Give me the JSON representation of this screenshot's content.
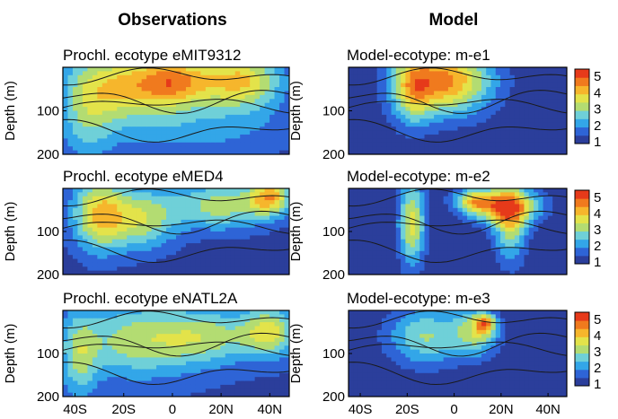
{
  "column_titles": {
    "left": "Observations",
    "right": "Model"
  },
  "colors": {
    "levels": [
      "#2b3e9b",
      "#2e64d6",
      "#33a6e8",
      "#6fd0d8",
      "#b3dc72",
      "#e3e34a",
      "#f6b62c",
      "#f07a1e",
      "#e63a1a"
    ],
    "contour": "#1a1a1a",
    "frame": "#000000"
  },
  "chart_data": [
    {
      "type": "heatmap",
      "id": "obs-emit9312",
      "title": "Prochl. ecotype eMIT9312",
      "ylabel": "Depth (m)",
      "yticks": [
        "100",
        "200"
      ],
      "xticks": [],
      "xlim": [
        -45,
        48
      ],
      "ylim": [
        200,
        0
      ],
      "blobs": [
        {
          "cx": -18,
          "cy": 40,
          "sx": 16,
          "sy": 55,
          "a": 3.4
        },
        {
          "cx": 2,
          "cy": 30,
          "sx": 10,
          "sy": 40,
          "a": 2.8
        },
        {
          "cx": 28,
          "cy": 30,
          "sx": 12,
          "sy": 45,
          "a": 3.6
        },
        {
          "cx": -35,
          "cy": 110,
          "sx": 8,
          "sy": 80,
          "a": 1.6
        },
        {
          "cx": 10,
          "cy": 140,
          "sx": 30,
          "sy": 50,
          "a": 1.2
        }
      ],
      "base": 0.6
    },
    {
      "type": "heatmap",
      "id": "model-me1",
      "title": "Model-ecotype: m-e1",
      "ylabel": "Depth (m)",
      "yticks": [
        "100",
        "200"
      ],
      "xticks": [],
      "xlim": [
        -45,
        48
      ],
      "ylim": [
        200,
        0
      ],
      "colorbar": [
        "5",
        "4",
        "3",
        "2",
        "1"
      ],
      "blobs": [
        {
          "cx": -4,
          "cy": 30,
          "sx": 14,
          "sy": 55,
          "a": 4.6
        },
        {
          "cx": -18,
          "cy": 55,
          "sx": 6,
          "sy": 60,
          "a": 2.2
        }
      ],
      "base": 0.4
    },
    {
      "type": "heatmap",
      "id": "obs-emed4",
      "title": "Prochl. ecotype eMED4",
      "ylabel": "Depth (m)",
      "yticks": [
        "100",
        "200"
      ],
      "xticks": [],
      "xlim": [
        -45,
        48
      ],
      "ylim": [
        200,
        0
      ],
      "blobs": [
        {
          "cx": -30,
          "cy": 60,
          "sx": 8,
          "sy": 60,
          "a": 3.5
        },
        {
          "cx": -12,
          "cy": 70,
          "sx": 10,
          "sy": 50,
          "a": 2.6
        },
        {
          "cx": 20,
          "cy": 40,
          "sx": 14,
          "sy": 40,
          "a": 2.6
        },
        {
          "cx": 40,
          "cy": 20,
          "sx": 6,
          "sy": 30,
          "a": 3.5
        }
      ],
      "base": 0.6
    },
    {
      "type": "heatmap",
      "id": "model-me2",
      "title": "Model-ecotype: m-e2",
      "ylabel": "Depth (m)",
      "yticks": [
        "100",
        "200"
      ],
      "xticks": [],
      "xlim": [
        -45,
        48
      ],
      "ylim": [
        200,
        0
      ],
      "colorbar": [
        "5",
        "4",
        "3",
        "2",
        "1"
      ],
      "blobs": [
        {
          "cx": -18,
          "cy": 80,
          "sx": 4,
          "sy": 70,
          "a": 3.4
        },
        {
          "cx": 22,
          "cy": 40,
          "sx": 10,
          "sy": 30,
          "a": 4.2
        },
        {
          "cx": 24,
          "cy": 90,
          "sx": 5,
          "sy": 60,
          "a": 2.6
        },
        {
          "cx": 8,
          "cy": 30,
          "sx": 6,
          "sy": 20,
          "a": 2.8
        }
      ],
      "base": 0.4
    },
    {
      "type": "heatmap",
      "id": "obs-enatl2a",
      "title": "Prochl. ecotype eNATL2A",
      "ylabel": "Depth (m)",
      "yticks": [
        "100",
        "200"
      ],
      "xticks": [
        "40S",
        "20S",
        "0",
        "20N",
        "40N"
      ],
      "xlim": [
        -45,
        48
      ],
      "ylim": [
        200,
        0
      ],
      "blobs": [
        {
          "cx": -15,
          "cy": 70,
          "sx": 18,
          "sy": 60,
          "a": 2.4
        },
        {
          "cx": 15,
          "cy": 60,
          "sx": 14,
          "sy": 45,
          "a": 2.0
        },
        {
          "cx": 40,
          "cy": 50,
          "sx": 8,
          "sy": 40,
          "a": 2.8
        },
        {
          "cx": -38,
          "cy": 110,
          "sx": 5,
          "sy": 70,
          "a": 1.8
        }
      ],
      "base": 0.8
    },
    {
      "type": "heatmap",
      "id": "model-me3",
      "title": "Model-ecotype: m-e3",
      "ylabel": "Depth (m)",
      "yticks": [
        "100",
        "200"
      ],
      "xticks": [
        "40S",
        "20S",
        "0",
        "20N",
        "40N"
      ],
      "xlim": [
        -45,
        48
      ],
      "ylim": [
        200,
        0
      ],
      "colorbar": [
        "5",
        "4",
        "3",
        "2",
        "1"
      ],
      "blobs": [
        {
          "cx": -12,
          "cy": 60,
          "sx": 12,
          "sy": 50,
          "a": 2.6
        },
        {
          "cx": 10,
          "cy": 50,
          "sx": 7,
          "sy": 40,
          "a": 2.6
        },
        {
          "cx": 13,
          "cy": 30,
          "sx": 3,
          "sy": 15,
          "a": 3.0
        }
      ],
      "base": 0.3
    }
  ]
}
